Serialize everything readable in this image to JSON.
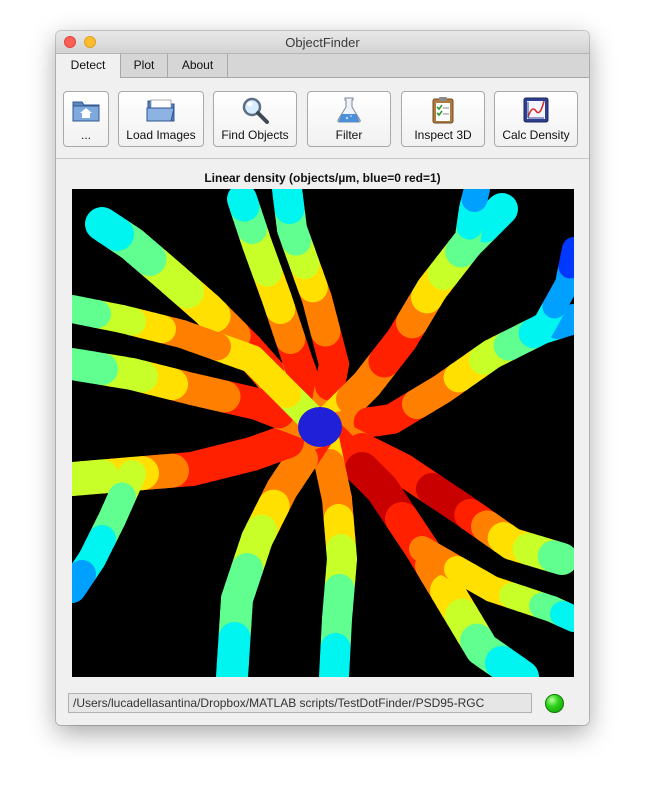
{
  "window": {
    "title": "ObjectFinder"
  },
  "tabs": [
    {
      "label": "Detect",
      "active": true
    },
    {
      "label": "Plot",
      "active": false
    },
    {
      "label": "About",
      "active": false
    }
  ],
  "toolbar": {
    "buttons": [
      {
        "label": "...",
        "icon": "home-folder-icon"
      },
      {
        "label": "Load Images",
        "icon": "open-folder-icon"
      },
      {
        "label": "Find Objects",
        "icon": "magnifier-icon"
      },
      {
        "label": "Filter",
        "icon": "flask-icon"
      },
      {
        "label": "Inspect 3D",
        "icon": "clipboard-checklist-icon"
      },
      {
        "label": "Calc Density",
        "icon": "density-chart-icon"
      }
    ]
  },
  "plot": {
    "title": "Linear density (objects/µm, blue=0 red=1)",
    "colormap": "jet",
    "background": "#000000"
  },
  "status": {
    "path": "/Users/lucadellasantina/Dropbox/MATLAB scripts/TestDotFinder/PSD95-RGC",
    "indicator_color": "#2fd11a"
  }
}
